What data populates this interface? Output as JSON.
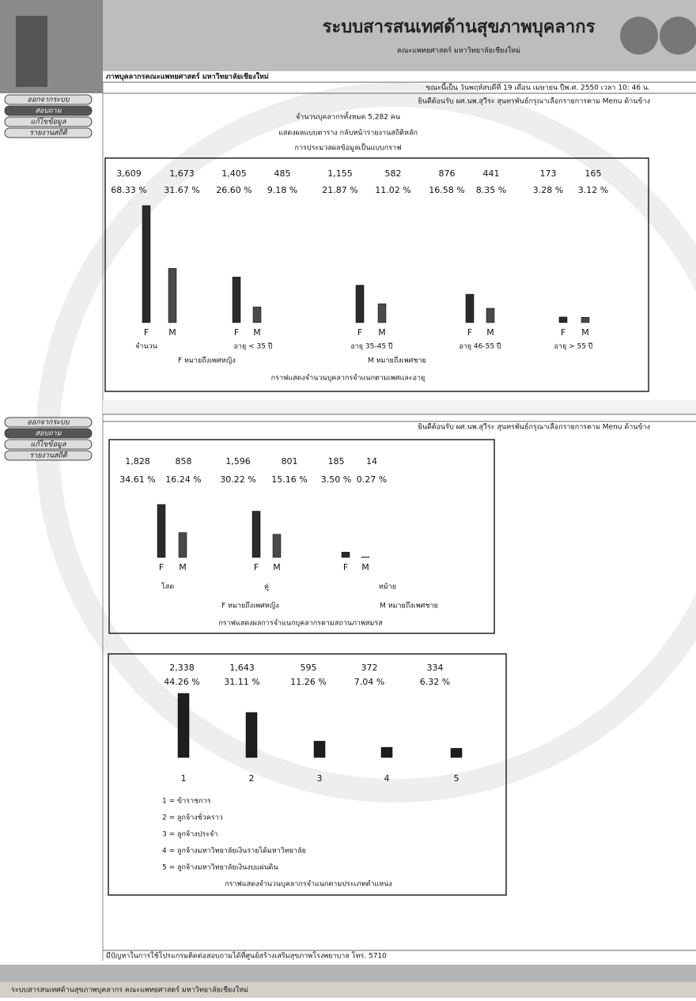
{
  "header": {
    "title": "ระบบสารสนเทศด้านสุขภาพบุคลากร",
    "subtitle": "คณะแพทยศาสตร์ มหาวิทยาลัยเชียงใหม่",
    "breadcrumb": "ภาพบุคลากรคณะแพทยศาสตร์ มหาวิทยาลัยเชียงใหม่"
  },
  "menu": [
    "ออกจากระบบ",
    "สอบถาม",
    "แก้ไขข้อมูล",
    "รายงานสถิติ"
  ],
  "info": {
    "datetime": "ขณะนี้เป็น วันพฤหัสบดีที่ 19 เดือน เมษายน ปีพ.ศ. 2550 เวลา 10: 46 น.",
    "welcome": "ยินดีต้อนรับ ผศ.นพ.สุวีระ สุนทรพันธ์กรุณาเลือกรายการตาม Menu ด้านข้าง",
    "total": "จำนวนบุคลากรทั้งหมด 5,282 คน",
    "table_link": "แสดงผลแบบตาราง กลับหน้ารายงานสถิติหลัก",
    "graph_note": "การประมวลผลข้อมูลเป็นแบบกราฟ"
  },
  "sex_labels": [
    "F",
    "M"
  ],
  "charts": [
    {
      "type": "bar",
      "categories": [
        "จำนวน",
        "อายุ < 35 ปี",
        "อายุ 35-45 ปี",
        "อายุ 46-55 ปี",
        "อายุ > 55 ปี"
      ],
      "values": [
        3609,
        1673,
        1405,
        485,
        1155,
        582,
        876,
        441,
        173,
        165
      ],
      "value_labels": [
        "3,609",
        "1,673",
        "1,405",
        "485",
        "1,155",
        "582",
        "876",
        "441",
        "173",
        "165"
      ],
      "percent_labels": [
        "68.33 %",
        "31.67 %",
        "26.60 %",
        "9.18 %",
        "21.87 %",
        "11.02 %",
        "16.58 %",
        "8.35 %",
        "3.28 %",
        "3.12 %"
      ],
      "legend": [
        "F หมายถึงเพศหญิง",
        "M หมายถึงเพศชาย"
      ],
      "caption": "กราฟแสดงจำนวนบุคลากรจำแนกตามเพศและอายุ",
      "colors": [
        "#2b2b2b",
        "#4a4a4a"
      ]
    },
    {
      "type": "bar",
      "categories": [
        "โสด",
        "คู่",
        "หม้าย"
      ],
      "values": [
        1828,
        858,
        1596,
        801,
        185,
        14
      ],
      "value_labels": [
        "1,828",
        "858",
        "1,596",
        "801",
        "185",
        "14"
      ],
      "percent_labels": [
        "34.61 %",
        "16.24 %",
        "30.22 %",
        "15.16 %",
        "3.50 %",
        "0.27 %"
      ],
      "legend": [
        "F หมายถึงเพศหญิง",
        "M หมายถึงเพศชาย"
      ],
      "caption": "กราฟแสดงผลการจำแนกบุคลากรตามสถานภาพสมรส",
      "colors": [
        "#2b2b2b",
        "#4a4a4a"
      ]
    },
    {
      "type": "bar",
      "categories": [
        "1",
        "2",
        "3",
        "4",
        "5"
      ],
      "values": [
        2338,
        1643,
        595,
        372,
        334
      ],
      "value_labels": [
        "2,338",
        "1,643",
        "595",
        "372",
        "334"
      ],
      "percent_labels": [
        "44.26 %",
        "31.11 %",
        "11.26 %",
        "7.04 %",
        "6.32 %"
      ],
      "legend": [
        "1 = ข้าราชการ",
        "2 = ลูกจ้างชั่วคราว",
        "3 = ลูกจ้างประจำ",
        "4 = ลูกจ้างมหาวิทยาลัยเงินรายได้มหาวิทยาลัย",
        "5 = ลูกจ้างมหาวิทยาลัยเงินงบแผ่นดิน"
      ],
      "caption": "กราฟแสดงจำนวนบุคลากรจำแนกตามประเภทตำแหน่ง",
      "colors": [
        "#1e1e1e"
      ]
    }
  ],
  "footer": {
    "contact": "มีปัญหาในการใช้โปรแกรมติดต่อสอบถามได้ที่ศูนย์สร้างเสริมสุขภาพโรงพยาบาล โทร. 5710",
    "status": "ระบบสารสนเทศด้านสุขภาพบุคลากร คณะแพทยศาสตร์ มหาวิทยาลัยเชียงใหม่"
  }
}
